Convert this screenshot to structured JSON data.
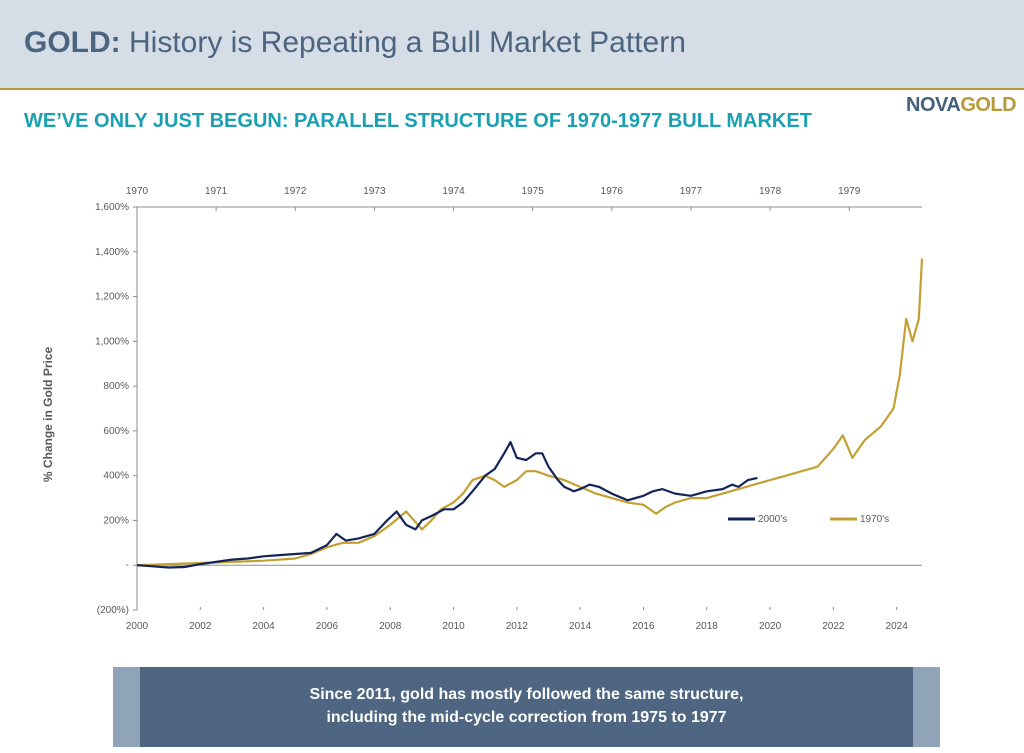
{
  "header": {
    "title_bold": "GOLD:",
    "title_rest": " History is Repeating a Bull Market Pattern",
    "subtitle": "WE’VE ONLY JUST BEGUN: PARALLEL STRUCTURE OF 1970-1977 BULL MARKET",
    "logo_part1": "NOVA",
    "logo_part2": "GOLD"
  },
  "colors": {
    "series_2000s": "#13245a",
    "series_1970s": "#c4a033",
    "header_bg": "#d5dde6",
    "banner_bg": "#4e6682"
  },
  "chart_data": {
    "type": "line",
    "title": "",
    "ylabel": "% Change in Gold Price",
    "ylim": [
      -200,
      1600
    ],
    "y_ticks": [
      -200,
      0,
      200,
      400,
      600,
      800,
      1000,
      1200,
      1400,
      1600
    ],
    "y_tick_labels": [
      "(200%)",
      "-",
      "200%",
      "400%",
      "600%",
      "800%",
      "1,000%",
      "1,200%",
      "1,400%",
      "1,600%"
    ],
    "x_bottom": {
      "range": [
        2000,
        2024.8
      ],
      "ticks": [
        2000,
        2002,
        2004,
        2006,
        2008,
        2010,
        2012,
        2014,
        2016,
        2018,
        2020,
        2022,
        2024
      ],
      "labels": [
        "2000",
        "2002",
        "2004",
        "2006",
        "2008",
        "2010",
        "2012",
        "2014",
        "2016",
        "2018",
        "2020",
        "2022",
        "2024"
      ]
    },
    "x_top": {
      "ticks": [
        1970,
        1971,
        1972,
        1973,
        1974,
        1975,
        1976,
        1977,
        1978,
        1979
      ],
      "labels": [
        "1970",
        "1971",
        "1972",
        "1973",
        "1974",
        "1975",
        "1976",
        "1977",
        "1978",
        "1979"
      ],
      "bottom_equivalent": [
        2000,
        2002.5,
        2005,
        2007.5,
        2010,
        2012.5,
        2015,
        2017.5,
        2020,
        2022.5
      ]
    },
    "legend": "right",
    "series": [
      {
        "name": "2000's",
        "x": [
          2000,
          2000.5,
          2001,
          2001.5,
          2002,
          2002.5,
          2003,
          2003.5,
          2004,
          2004.5,
          2005,
          2005.5,
          2006,
          2006.3,
          2006.6,
          2007,
          2007.5,
          2007.9,
          2008.2,
          2008.5,
          2008.8,
          2009,
          2009.3,
          2009.7,
          2010,
          2010.3,
          2010.6,
          2011,
          2011.3,
          2011.6,
          2011.8,
          2012,
          2012.3,
          2012.6,
          2012.8,
          2013,
          2013.3,
          2013.5,
          2013.8,
          2014,
          2014.3,
          2014.6,
          2015,
          2015.5,
          2016,
          2016.3,
          2016.6,
          2017,
          2017.5,
          2018,
          2018.5,
          2018.8,
          2019,
          2019.3,
          2019.6
        ],
        "values": [
          0,
          -5,
          -10,
          -8,
          5,
          15,
          25,
          30,
          40,
          45,
          50,
          55,
          90,
          140,
          110,
          120,
          140,
          200,
          240,
          180,
          160,
          200,
          220,
          250,
          250,
          280,
          330,
          400,
          430,
          500,
          550,
          480,
          470,
          500,
          500,
          440,
          380,
          350,
          330,
          340,
          360,
          350,
          320,
          290,
          310,
          330,
          340,
          320,
          310,
          330,
          340,
          360,
          350,
          380,
          390
        ]
      },
      {
        "name": "1970's",
        "x": [
          2000,
          2001,
          2002,
          2003,
          2004,
          2005,
          2005.5,
          2006,
          2006.5,
          2007,
          2007.5,
          2008,
          2008.5,
          2009,
          2009.3,
          2009.6,
          2010,
          2010.3,
          2010.6,
          2011,
          2011.3,
          2011.6,
          2012,
          2012.3,
          2012.6,
          2013,
          2013.5,
          2014,
          2014.5,
          2015,
          2015.5,
          2016,
          2016.4,
          2016.7,
          2017,
          2017.5,
          2018,
          2018.5,
          2019,
          2019.5,
          2020,
          2020.5,
          2021,
          2021.5,
          2022,
          2022.3,
          2022.6,
          2023,
          2023.5,
          2023.9,
          2024.1,
          2024.3,
          2024.5,
          2024.7,
          2024.8
        ],
        "values": [
          0,
          5,
          10,
          15,
          20,
          30,
          50,
          80,
          100,
          100,
          130,
          180,
          240,
          160,
          200,
          250,
          280,
          320,
          380,
          400,
          380,
          350,
          380,
          420,
          420,
          400,
          380,
          350,
          320,
          300,
          280,
          270,
          230,
          260,
          280,
          300,
          300,
          320,
          340,
          360,
          380,
          400,
          420,
          440,
          520,
          580,
          480,
          560,
          620,
          700,
          850,
          1100,
          1000,
          1100,
          1370
        ]
      }
    ]
  },
  "banner": {
    "line1": "Since 2011, gold has mostly followed the same structure,",
    "line2": "including the mid-cycle correction from 1975 to 1977"
  }
}
